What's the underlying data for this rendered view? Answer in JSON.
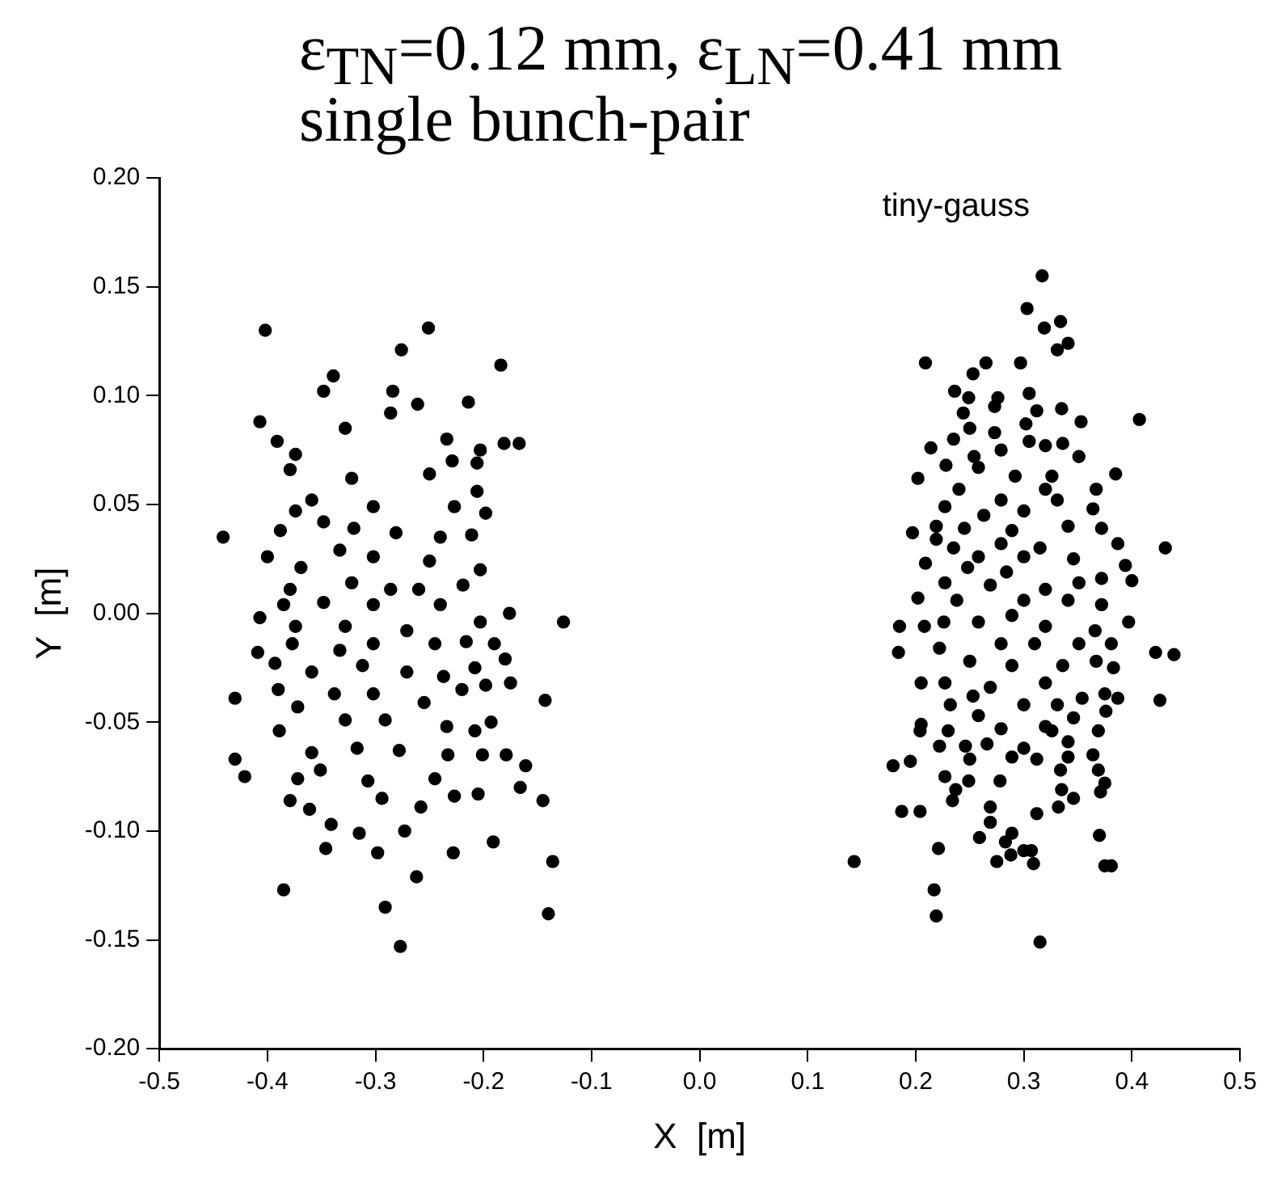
{
  "chart_data": {
    "type": "scatter",
    "title": "ε$_{TN}$=0.12 mm, ε$_{LN}$=0.41 mm",
    "subtitle": "single bunch-pair",
    "xlabel": "X  [m]",
    "ylabel": "Y  [m]",
    "annotations": [
      "tiny-gauss"
    ],
    "grid": false,
    "legend": false,
    "marker": "circle",
    "xlim": [
      -0.5,
      0.5
    ],
    "xticks": [
      {
        "value": -0.5,
        "label": "-0.5"
      },
      {
        "value": -0.4,
        "label": "-0.4"
      },
      {
        "value": -0.3,
        "label": "-0.3"
      },
      {
        "value": -0.2,
        "label": "-0.2"
      },
      {
        "value": -0.1,
        "label": "-0.1"
      },
      {
        "value": 0,
        "label": "0.0"
      },
      {
        "value": 0.1,
        "label": "0.1"
      },
      {
        "value": 0.2,
        "label": "0.2"
      },
      {
        "value": 0.3,
        "label": "0.3"
      },
      {
        "value": 0.4,
        "label": "0.4"
      },
      {
        "value": 0.5,
        "label": "0.5"
      }
    ],
    "ylim": [
      -0.2,
      0.2
    ],
    "yticks": [
      {
        "value": -0.2,
        "label": "-0.20"
      },
      {
        "value": -0.15,
        "label": "-0.15"
      },
      {
        "value": -0.1,
        "label": "-0.10"
      },
      {
        "value": -0.05,
        "label": "-0.05"
      },
      {
        "value": 0,
        "label": "0.00"
      },
      {
        "value": 0.05,
        "label": "0.05"
      },
      {
        "value": 0.1,
        "label": "0.10"
      },
      {
        "value": 0.15,
        "label": "0.15"
      },
      {
        "value": 0.2,
        "label": "0.20"
      }
    ],
    "series": [
      {
        "color": "#000000",
        "x": [
          -0.402,
          -0.251,
          -0.276,
          -0.184,
          -0.339,
          -0.348,
          -0.284,
          -0.214,
          -0.261,
          -0.407,
          -0.391,
          -0.181,
          -0.167,
          -0.203,
          -0.328,
          -0.286,
          -0.234,
          -0.374,
          -0.379,
          -0.229,
          -0.206,
          -0.322,
          -0.25,
          -0.206,
          -0.359,
          -0.302,
          -0.227,
          -0.198,
          -0.374,
          -0.441,
          -0.388,
          -0.348,
          -0.32,
          -0.281,
          -0.24,
          -0.211,
          -0.4,
          -0.369,
          -0.333,
          -0.302,
          -0.25,
          -0.203,
          -0.379,
          -0.322,
          -0.286,
          -0.26,
          -0.219,
          -0.385,
          -0.348,
          -0.302,
          -0.24,
          -0.176,
          -0.126,
          -0.407,
          -0.374,
          -0.328,
          -0.271,
          -0.203,
          -0.409,
          -0.377,
          -0.333,
          -0.302,
          -0.245,
          -0.216,
          -0.19,
          -0.393,
          -0.359,
          -0.312,
          -0.271,
          -0.237,
          -0.208,
          -0.18,
          -0.175,
          -0.198,
          -0.43,
          -0.39,
          -0.372,
          -0.338,
          -0.302,
          -0.255,
          -0.22,
          -0.143,
          -0.389,
          -0.328,
          -0.291,
          -0.234,
          -0.193,
          -0.208,
          -0.43,
          -0.421,
          -0.359,
          -0.317,
          -0.278,
          -0.233,
          -0.201,
          -0.179,
          -0.161,
          -0.372,
          -0.351,
          -0.307,
          -0.245,
          -0.379,
          -0.361,
          -0.294,
          -0.258,
          -0.227,
          -0.205,
          -0.166,
          -0.145,
          -0.341,
          -0.315,
          -0.273,
          -0.346,
          -0.298,
          -0.228,
          -0.191,
          -0.136,
          -0.262,
          -0.385,
          -0.291,
          -0.14,
          -0.277,
          0.317,
          0.303,
          0.319,
          0.334,
          0.341,
          0.331,
          0.209,
          0.265,
          0.297,
          0.253,
          0.236,
          0.249,
          0.276,
          0.305,
          0.273,
          0.312,
          0.335,
          0.407,
          0.244,
          0.353,
          0.302,
          0.25,
          0.273,
          0.214,
          0.235,
          0.279,
          0.305,
          0.32,
          0.336,
          0.254,
          0.351,
          0.228,
          0.202,
          0.258,
          0.292,
          0.326,
          0.385,
          0.24,
          0.32,
          0.367,
          0.227,
          0.279,
          0.331,
          0.263,
          0.3,
          0.364,
          0.197,
          0.219,
          0.245,
          0.289,
          0.341,
          0.372,
          0.431,
          0.219,
          0.235,
          0.279,
          0.315,
          0.387,
          0.209,
          0.258,
          0.3,
          0.346,
          0.394,
          0.248,
          0.284,
          0.372,
          0.4,
          0.227,
          0.269,
          0.32,
          0.351,
          0.202,
          0.238,
          0.3,
          0.341,
          0.372,
          0.185,
          0.208,
          0.226,
          0.258,
          0.289,
          0.32,
          0.366,
          0.397,
          0.184,
          0.222,
          0.279,
          0.31,
          0.351,
          0.381,
          0.422,
          0.439,
          0.25,
          0.289,
          0.336,
          0.367,
          0.383,
          0.205,
          0.227,
          0.269,
          0.32,
          0.354,
          0.375,
          0.387,
          0.426,
          0.232,
          0.253,
          0.3,
          0.331,
          0.376,
          0.205,
          0.258,
          0.32,
          0.346,
          0.204,
          0.23,
          0.279,
          0.326,
          0.369,
          0.222,
          0.266,
          0.3,
          0.341,
          0.246,
          0.179,
          0.195,
          0.25,
          0.289,
          0.312,
          0.341,
          0.364,
          0.334,
          0.369,
          0.227,
          0.278,
          0.249,
          0.375,
          0.237,
          0.335,
          0.371,
          0.234,
          0.346,
          0.187,
          0.204,
          0.269,
          0.312,
          0.332,
          0.269,
          0.289,
          0.259,
          0.37,
          0.283,
          0.221,
          0.3,
          0.307,
          0.288,
          0.143,
          0.275,
          0.309,
          0.375,
          0.381,
          0.217,
          0.219,
          0.315
        ],
        "values": [
          0.13,
          0.131,
          0.121,
          0.114,
          0.109,
          0.102,
          0.102,
          0.097,
          0.096,
          0.088,
          0.079,
          0.078,
          0.078,
          0.075,
          0.085,
          0.092,
          0.08,
          0.073,
          0.066,
          0.07,
          0.069,
          0.062,
          0.064,
          0.056,
          0.052,
          0.049,
          0.049,
          0.046,
          0.047,
          0.035,
          0.038,
          0.042,
          0.039,
          0.037,
          0.035,
          0.036,
          0.026,
          0.021,
          0.029,
          0.026,
          0.024,
          0.02,
          0.011,
          0.014,
          0.011,
          0.011,
          0.013,
          0.004,
          0.005,
          0.004,
          0.004,
          0,
          -0.004,
          -0.002,
          -0.006,
          -0.006,
          -0.008,
          -0.004,
          -0.018,
          -0.014,
          -0.017,
          -0.014,
          -0.014,
          -0.013,
          -0.014,
          -0.023,
          -0.027,
          -0.024,
          -0.027,
          -0.029,
          -0.025,
          -0.021,
          -0.032,
          -0.033,
          -0.039,
          -0.035,
          -0.043,
          -0.037,
          -0.037,
          -0.041,
          -0.035,
          -0.04,
          -0.054,
          -0.049,
          -0.049,
          -0.052,
          -0.05,
          -0.054,
          -0.067,
          -0.075,
          -0.064,
          -0.062,
          -0.063,
          -0.065,
          -0.065,
          -0.065,
          -0.07,
          -0.076,
          -0.072,
          -0.077,
          -0.076,
          -0.086,
          -0.09,
          -0.085,
          -0.089,
          -0.084,
          -0.083,
          -0.08,
          -0.086,
          -0.097,
          -0.101,
          -0.1,
          -0.108,
          -0.11,
          -0.11,
          -0.105,
          -0.114,
          -0.121,
          -0.127,
          -0.135,
          -0.138,
          -0.153,
          0.155,
          0.14,
          0.131,
          0.134,
          0.124,
          0.121,
          0.115,
          0.115,
          0.115,
          0.11,
          0.102,
          0.099,
          0.099,
          0.101,
          0.095,
          0.093,
          0.094,
          0.089,
          0.092,
          0.088,
          0.087,
          0.085,
          0.083,
          0.076,
          0.08,
          0.075,
          0.079,
          0.077,
          0.078,
          0.072,
          0.072,
          0.068,
          0.062,
          0.067,
          0.063,
          0.063,
          0.064,
          0.057,
          0.057,
          0.057,
          0.049,
          0.052,
          0.052,
          0.045,
          0.047,
          0.048,
          0.037,
          0.04,
          0.039,
          0.038,
          0.04,
          0.039,
          0.03,
          0.034,
          0.03,
          0.032,
          0.03,
          0.032,
          0.023,
          0.026,
          0.026,
          0.025,
          0.022,
          0.021,
          0.019,
          0.016,
          0.015,
          0.014,
          0.013,
          0.011,
          0.014,
          0.007,
          0.006,
          0.006,
          0.006,
          0.004,
          -0.006,
          -0.006,
          -0.004,
          -0.004,
          -0.001,
          -0.006,
          -0.008,
          -0.004,
          -0.018,
          -0.016,
          -0.014,
          -0.014,
          -0.014,
          -0.014,
          -0.018,
          -0.019,
          -0.022,
          -0.024,
          -0.024,
          -0.022,
          -0.025,
          -0.032,
          -0.032,
          -0.034,
          -0.032,
          -0.039,
          -0.037,
          -0.039,
          -0.04,
          -0.042,
          -0.038,
          -0.042,
          -0.042,
          -0.045,
          -0.051,
          -0.047,
          -0.052,
          -0.048,
          -0.054,
          -0.054,
          -0.053,
          -0.054,
          -0.054,
          -0.061,
          -0.06,
          -0.062,
          -0.059,
          -0.061,
          -0.07,
          -0.068,
          -0.067,
          -0.066,
          -0.067,
          -0.066,
          -0.065,
          -0.072,
          -0.072,
          -0.075,
          -0.077,
          -0.077,
          -0.078,
          -0.081,
          -0.081,
          -0.082,
          -0.086,
          -0.085,
          -0.091,
          -0.091,
          -0.089,
          -0.092,
          -0.089,
          -0.096,
          -0.101,
          -0.103,
          -0.102,
          -0.105,
          -0.108,
          -0.109,
          -0.109,
          -0.111,
          -0.114,
          -0.114,
          -0.115,
          -0.116,
          -0.116,
          -0.127,
          -0.139,
          -0.151
        ]
      }
    ]
  }
}
